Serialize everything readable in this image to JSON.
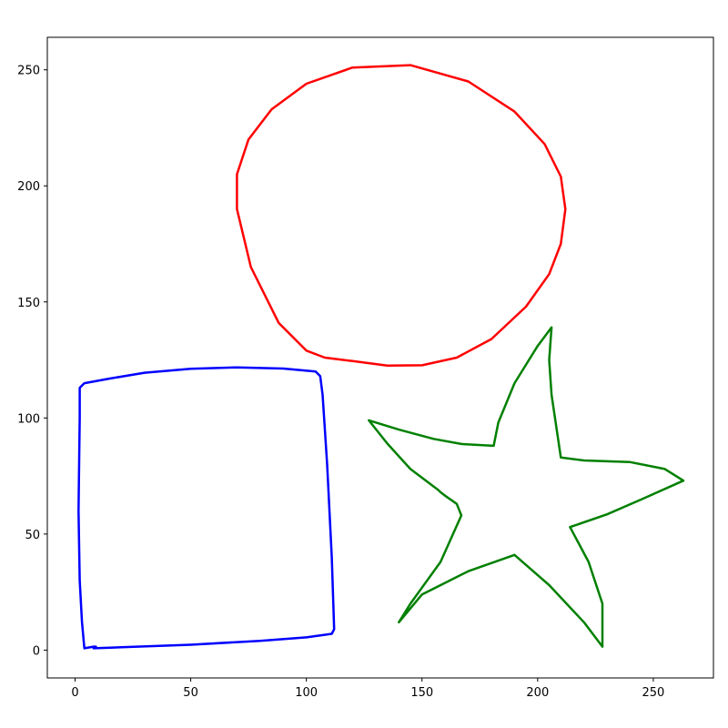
{
  "chart_data": {
    "type": "line",
    "title": "",
    "xlabel": "",
    "ylabel": "",
    "xlim": [
      -12,
      276
    ],
    "ylim": [
      -12,
      264
    ],
    "xticks": [
      0,
      50,
      100,
      150,
      200,
      250
    ],
    "yticks": [
      0,
      50,
      100,
      150,
      200,
      250
    ],
    "xtick_labels": [
      "0",
      "50",
      "100",
      "150",
      "200",
      "250"
    ],
    "ytick_labels": [
      "0",
      "50",
      "100",
      "150",
      "200",
      "250"
    ],
    "grid": false,
    "series": [
      {
        "color": "#0000ff",
        "x": [
          8,
          20,
          50,
          80,
          100,
          111,
          112,
          111,
          109,
          107,
          106,
          104,
          90,
          70,
          50,
          30,
          15,
          4,
          3,
          2,
          2,
          1.5,
          2,
          3,
          4,
          8,
          9,
          8
        ],
        "y": [
          0.8,
          1.2,
          2.3,
          4,
          5.5,
          7,
          9,
          40,
          80,
          110,
          118,
          120,
          121.3,
          121.8,
          121.2,
          119.5,
          117,
          115,
          114,
          113,
          100,
          60,
          30,
          12,
          0.8,
          1.5,
          1.5,
          1
        ]
      },
      {
        "color": "#ff0000",
        "x": [
          108,
          120,
          135,
          150,
          165,
          180,
          195,
          205,
          210,
          212,
          210,
          203,
          190,
          170,
          145,
          120,
          100,
          85,
          75,
          70,
          70,
          76,
          88,
          100,
          108
        ],
        "y": [
          126,
          124.5,
          122.6,
          122.7,
          126,
          134,
          148,
          162,
          175,
          190,
          204,
          218,
          232,
          245,
          252,
          251,
          244,
          233,
          220,
          205,
          190,
          165,
          141,
          129,
          126
        ]
      },
      {
        "color": "#008000",
        "x": [
          127,
          140,
          155,
          167,
          181,
          183,
          190,
          200,
          206,
          205,
          206,
          210,
          220,
          240,
          255,
          263,
          245,
          230,
          214,
          222,
          228,
          228,
          220,
          205,
          190,
          170,
          150,
          140,
          145,
          158,
          167,
          165,
          160,
          158,
          157,
          145,
          135,
          127
        ],
        "y": [
          99,
          95,
          91,
          88.8,
          88,
          98,
          115,
          131,
          139,
          125,
          110,
          83,
          81.7,
          81,
          78,
          73,
          65,
          58.5,
          53,
          38,
          20,
          1.5,
          12,
          28,
          41,
          34,
          24,
          12,
          20,
          38,
          58,
          63,
          66.5,
          68,
          69,
          78,
          89,
          99
        ]
      }
    ]
  }
}
